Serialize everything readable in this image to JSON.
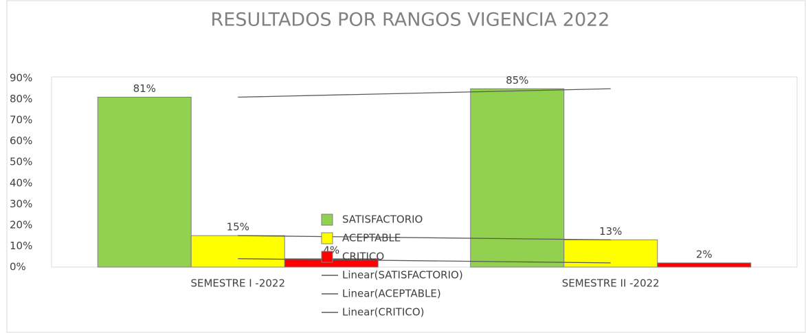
{
  "chart_data": {
    "type": "bar",
    "title": "RESULTADOS POR RANGOS VIGENCIA 2022",
    "categories": [
      "SEMESTRE I -2022",
      "SEMESTRE II -2022"
    ],
    "series": [
      {
        "name": "SATISFACTORIO",
        "color": "#92d050",
        "values": [
          81,
          85
        ],
        "value_labels": [
          "81%",
          "85%"
        ]
      },
      {
        "name": "ACEPTABLE",
        "color": "#ffff00",
        "values": [
          15,
          13
        ],
        "value_labels": [
          "15%",
          "13%"
        ]
      },
      {
        "name": "CRITICO",
        "color": "#ff0000",
        "values": [
          4,
          2
        ],
        "value_labels": [
          "4%",
          "2%"
        ]
      }
    ],
    "trendline_names": [
      "Linear(SATISFACTORIO)",
      "Linear(ACEPTABLE)",
      "Linear(CRITICO)"
    ],
    "trendline_color": "#595959",
    "ylim": [
      0,
      90
    ],
    "yticks": [
      {
        "value": 0,
        "label": "0%"
      },
      {
        "value": 10,
        "label": "10%"
      },
      {
        "value": 20,
        "label": "20%"
      },
      {
        "value": 30,
        "label": "30%"
      },
      {
        "value": 40,
        "label": "40%"
      },
      {
        "value": 50,
        "label": "50%"
      },
      {
        "value": 60,
        "label": "60%"
      },
      {
        "value": 70,
        "label": "70%"
      },
      {
        "value": 80,
        "label": "80%"
      },
      {
        "value": 90,
        "label": "90%"
      }
    ]
  }
}
